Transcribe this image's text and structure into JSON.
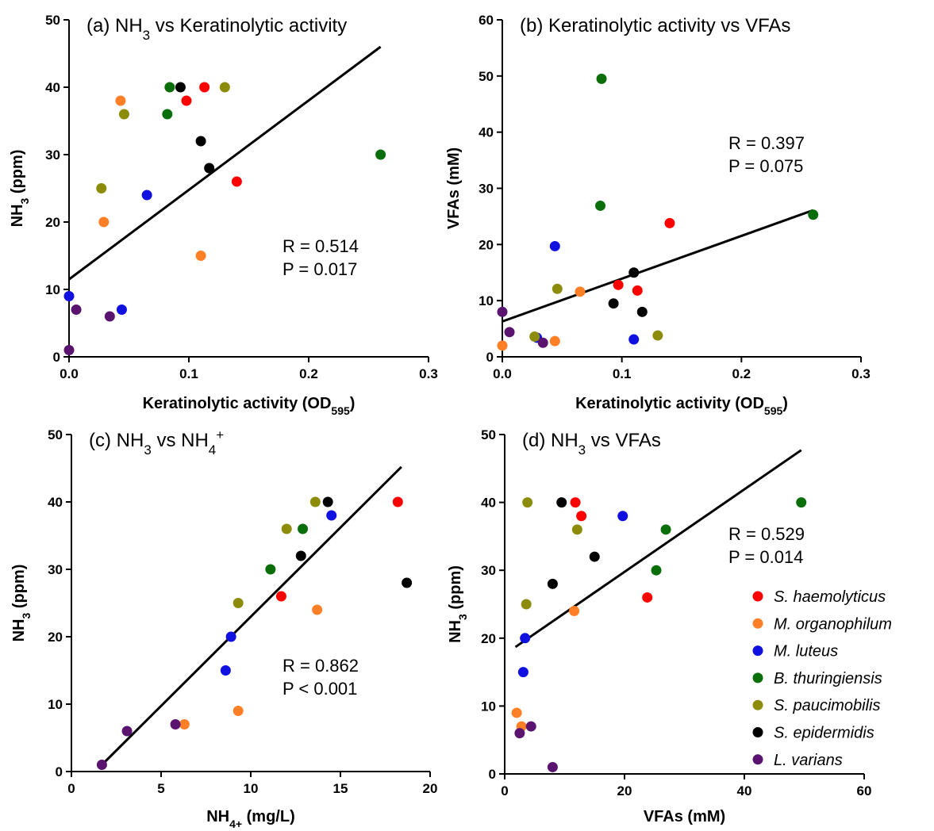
{
  "colors": {
    "S. haemolyticus": "#ff0000",
    "M. organophilum": "#ff7f27",
    "M. luteus": "#1010e0",
    "B. thuringiensis": "#0a6e0a",
    "S. paucimobilis": "#8c8c0a",
    "S. epidermidis": "#000000",
    "L. varians": "#5a1470"
  },
  "legend": {
    "entries": [
      "S. haemolyticus",
      "M. organophilum",
      "M. luteus",
      "B. thuringiensis",
      "S. paucimobilis",
      "S. epidermidis",
      "L. varians"
    ],
    "placement": "bottom-right of panel (d)"
  },
  "chart_data": [
    {
      "id": "a",
      "type": "scatter",
      "title": {
        "pre": "(a) NH",
        "sub": "3",
        "post": " vs Keratinolytic activity"
      },
      "xlabel": {
        "pre": "Keratinolytic activity (OD",
        "sub": "595",
        "post": ")"
      },
      "ylabel": {
        "pre": "NH",
        "sub": "3",
        "post": " (ppm)"
      },
      "xlim": [
        0,
        0.3
      ],
      "ylim": [
        0,
        50
      ],
      "xticks": [
        0,
        0.1,
        0.2,
        0.3
      ],
      "xtick_labels": [
        "0.0",
        "0.1",
        "0.2",
        "0.3"
      ],
      "yticks": [
        0,
        10,
        20,
        30,
        40,
        50
      ],
      "ytick_labels": [
        "0",
        "10",
        "20",
        "30",
        "40",
        "50"
      ],
      "stats": [
        "R = 0.514",
        "P = 0.017"
      ],
      "fit": [
        [
          0,
          11.5
        ],
        [
          0.26,
          46
        ]
      ],
      "points": [
        {
          "s": "S. haemolyticus",
          "x": 0.098,
          "y": 38
        },
        {
          "s": "S. haemolyticus",
          "x": 0.113,
          "y": 40
        },
        {
          "s": "S. haemolyticus",
          "x": 0.14,
          "y": 26
        },
        {
          "s": "M. organophilum",
          "x": 0.043,
          "y": 38
        },
        {
          "s": "M. organophilum",
          "x": 0.029,
          "y": 20
        },
        {
          "s": "M. organophilum",
          "x": 0.11,
          "y": 15
        },
        {
          "s": "M. luteus",
          "x": 0.065,
          "y": 24
        },
        {
          "s": "M. luteus",
          "x": 0.044,
          "y": 7
        },
        {
          "s": "M. luteus",
          "x": 0.0,
          "y": 9
        },
        {
          "s": "B. thuringiensis",
          "x": 0.084,
          "y": 40
        },
        {
          "s": "B. thuringiensis",
          "x": 0.082,
          "y": 36
        },
        {
          "s": "B. thuringiensis",
          "x": 0.26,
          "y": 30
        },
        {
          "s": "S. paucimobilis",
          "x": 0.046,
          "y": 36
        },
        {
          "s": "S. paucimobilis",
          "x": 0.027,
          "y": 25
        },
        {
          "s": "S. paucimobilis",
          "x": 0.13,
          "y": 40
        },
        {
          "s": "S. epidermidis",
          "x": 0.093,
          "y": 40
        },
        {
          "s": "S. epidermidis",
          "x": 0.11,
          "y": 32
        },
        {
          "s": "S. epidermidis",
          "x": 0.117,
          "y": 28
        },
        {
          "s": "L. varians",
          "x": 0.006,
          "y": 7
        },
        {
          "s": "L. varians",
          "x": 0.034,
          "y": 6
        },
        {
          "s": "L. varians",
          "x": 0.0,
          "y": 1
        }
      ]
    },
    {
      "id": "b",
      "type": "scatter",
      "title": {
        "pre": "(b) Keratinolytic activity vs VFAs",
        "sub": "",
        "post": ""
      },
      "xlabel": {
        "pre": "Keratinolytic activity (OD",
        "sub": "595",
        "post": ")"
      },
      "ylabel": {
        "pre": "VFAs (mM)",
        "sub": "",
        "post": ""
      },
      "xlim": [
        0,
        0.3
      ],
      "ylim": [
        0,
        60
      ],
      "xticks": [
        0,
        0.1,
        0.2,
        0.3
      ],
      "xtick_labels": [
        "0.0",
        "0.1",
        "0.2",
        "0.3"
      ],
      "yticks": [
        0,
        10,
        20,
        30,
        40,
        50,
        60
      ],
      "ytick_labels": [
        "0",
        "10",
        "20",
        "30",
        "40",
        "50",
        "60"
      ],
      "stats": [
        "R = 0.397",
        "P = 0.075"
      ],
      "fit": [
        [
          0,
          6.3
        ],
        [
          0.26,
          26.1
        ]
      ],
      "points": [
        {
          "s": "S. haemolyticus",
          "x": 0.097,
          "y": 12.8
        },
        {
          "s": "S. haemolyticus",
          "x": 0.113,
          "y": 11.8
        },
        {
          "s": "S. haemolyticus",
          "x": 0.14,
          "y": 23.8
        },
        {
          "s": "M. organophilum",
          "x": 0.0,
          "y": 2.0
        },
        {
          "s": "M. organophilum",
          "x": 0.044,
          "y": 2.8
        },
        {
          "s": "M. organophilum",
          "x": 0.065,
          "y": 11.6
        },
        {
          "s": "M. luteus",
          "x": 0.044,
          "y": 19.7
        },
        {
          "s": "M. luteus",
          "x": 0.11,
          "y": 3.1
        },
        {
          "s": "M. luteus",
          "x": 0.029,
          "y": 3.4
        },
        {
          "s": "B. thuringiensis",
          "x": 0.083,
          "y": 49.5
        },
        {
          "s": "B. thuringiensis",
          "x": 0.082,
          "y": 26.9
        },
        {
          "s": "B. thuringiensis",
          "x": 0.26,
          "y": 25.3
        },
        {
          "s": "S. paucimobilis",
          "x": 0.046,
          "y": 12.1
        },
        {
          "s": "S. paucimobilis",
          "x": 0.027,
          "y": 3.6
        },
        {
          "s": "S. paucimobilis",
          "x": 0.13,
          "y": 3.8
        },
        {
          "s": "S. epidermidis",
          "x": 0.093,
          "y": 9.5
        },
        {
          "s": "S. epidermidis",
          "x": 0.11,
          "y": 15.0
        },
        {
          "s": "S. epidermidis",
          "x": 0.117,
          "y": 8.0
        },
        {
          "s": "L. varians",
          "x": 0.0,
          "y": 8.0
        },
        {
          "s": "L. varians",
          "x": 0.006,
          "y": 4.4
        },
        {
          "s": "L. varians",
          "x": 0.034,
          "y": 2.5
        }
      ]
    },
    {
      "id": "c",
      "type": "scatter",
      "title": {
        "pre": "(c) NH",
        "sub": "3",
        "post": " vs NH",
        "sub2": "4",
        "sup": "+"
      },
      "xlabel": {
        "pre": "NH",
        "sub": "4+",
        "post": " (mg/L)"
      },
      "ylabel": {
        "pre": "NH",
        "sub": "3",
        "post": " (ppm)"
      },
      "xlim": [
        0,
        20
      ],
      "ylim": [
        0,
        50
      ],
      "xticks": [
        0,
        5,
        10,
        15,
        20
      ],
      "xtick_labels": [
        "0",
        "5",
        "10",
        "15",
        "20"
      ],
      "yticks": [
        0,
        10,
        20,
        30,
        40,
        50
      ],
      "ytick_labels": [
        "0",
        "10",
        "20",
        "30",
        "40",
        "50"
      ],
      "stats": [
        "R = 0.862",
        "P < 0.001"
      ],
      "fit": [
        [
          1.7,
          1.0
        ],
        [
          18.4,
          45.2
        ]
      ],
      "points": [
        {
          "s": "S. haemolyticus",
          "x": 18.2,
          "y": 40
        },
        {
          "s": "S. haemolyticus",
          "x": 11.7,
          "y": 26
        },
        {
          "s": "M. organophilum",
          "x": 13.7,
          "y": 24
        },
        {
          "s": "M. organophilum",
          "x": 9.3,
          "y": 9
        },
        {
          "s": "M. organophilum",
          "x": 6.3,
          "y": 7
        },
        {
          "s": "M. luteus",
          "x": 14.5,
          "y": 38
        },
        {
          "s": "M. luteus",
          "x": 8.9,
          "y": 20
        },
        {
          "s": "M. luteus",
          "x": 8.6,
          "y": 15
        },
        {
          "s": "B. thuringiensis",
          "x": 12.9,
          "y": 36
        },
        {
          "s": "B. thuringiensis",
          "x": 11.1,
          "y": 30
        },
        {
          "s": "S. paucimobilis",
          "x": 13.6,
          "y": 40
        },
        {
          "s": "S. paucimobilis",
          "x": 12.0,
          "y": 36
        },
        {
          "s": "S. paucimobilis",
          "x": 9.3,
          "y": 25
        },
        {
          "s": "S. epidermidis",
          "x": 14.3,
          "y": 40
        },
        {
          "s": "S. epidermidis",
          "x": 12.8,
          "y": 32
        },
        {
          "s": "S. epidermidis",
          "x": 18.7,
          "y": 28
        },
        {
          "s": "L. varians",
          "x": 3.1,
          "y": 6
        },
        {
          "s": "L. varians",
          "x": 5.8,
          "y": 7
        },
        {
          "s": "L. varians",
          "x": 1.7,
          "y": 1
        }
      ]
    },
    {
      "id": "d",
      "type": "scatter",
      "title": {
        "pre": "(d) NH",
        "sub": "3",
        "post": " vs VFAs"
      },
      "xlabel": {
        "pre": "VFAs (mM)",
        "sub": "",
        "post": ""
      },
      "ylabel": {
        "pre": "NH",
        "sub": "3",
        "post": " (ppm)"
      },
      "xlim": [
        0,
        60
      ],
      "ylim": [
        0,
        50
      ],
      "xticks": [
        0,
        20,
        40,
        60
      ],
      "xtick_labels": [
        "0",
        "20",
        "40",
        "60"
      ],
      "yticks": [
        0,
        10,
        20,
        30,
        40,
        50
      ],
      "ytick_labels": [
        "0",
        "10",
        "20",
        "30",
        "40",
        "50"
      ],
      "stats": [
        "R = 0.529",
        "P = 0.014"
      ],
      "fit": [
        [
          1.8,
          18.7
        ],
        [
          49.5,
          47.7
        ]
      ],
      "points": [
        {
          "s": "S. haemolyticus",
          "x": 11.8,
          "y": 40
        },
        {
          "s": "S. haemolyticus",
          "x": 12.8,
          "y": 38
        },
        {
          "s": "S. haemolyticus",
          "x": 23.8,
          "y": 26
        },
        {
          "s": "M. organophilum",
          "x": 11.6,
          "y": 24
        },
        {
          "s": "M. organophilum",
          "x": 2.0,
          "y": 9
        },
        {
          "s": "M. organophilum",
          "x": 2.8,
          "y": 7
        },
        {
          "s": "M. luteus",
          "x": 19.7,
          "y": 38
        },
        {
          "s": "M. luteus",
          "x": 3.4,
          "y": 20
        },
        {
          "s": "M. luteus",
          "x": 3.1,
          "y": 15
        },
        {
          "s": "B. thuringiensis",
          "x": 49.5,
          "y": 40
        },
        {
          "s": "B. thuringiensis",
          "x": 26.9,
          "y": 36
        },
        {
          "s": "B. thuringiensis",
          "x": 25.3,
          "y": 30
        },
        {
          "s": "S. paucimobilis",
          "x": 3.8,
          "y": 40
        },
        {
          "s": "S. paucimobilis",
          "x": 12.1,
          "y": 36
        },
        {
          "s": "S. paucimobilis",
          "x": 3.6,
          "y": 25
        },
        {
          "s": "S. epidermidis",
          "x": 9.5,
          "y": 40
        },
        {
          "s": "S. epidermidis",
          "x": 15.0,
          "y": 32
        },
        {
          "s": "S. epidermidis",
          "x": 8.0,
          "y": 28
        },
        {
          "s": "L. varians",
          "x": 2.5,
          "y": 6
        },
        {
          "s": "L. varians",
          "x": 4.4,
          "y": 7
        },
        {
          "s": "L. varians",
          "x": 8.0,
          "y": 1
        }
      ]
    }
  ]
}
